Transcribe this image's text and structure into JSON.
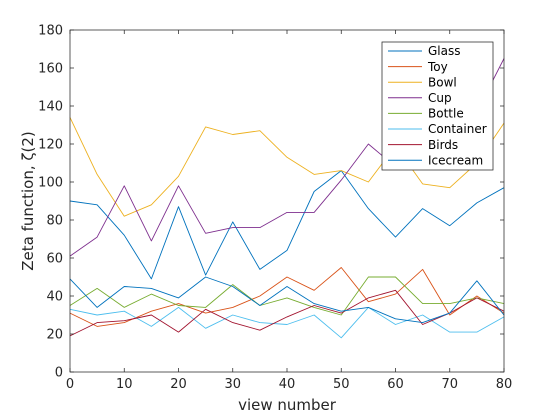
{
  "chart_data": {
    "type": "line",
    "title": "",
    "xlabel": "view number",
    "ylabel": "Zeta function, ζ(2)",
    "xlim": [
      0,
      80
    ],
    "ylim": [
      0,
      180
    ],
    "xticks": [
      0,
      10,
      20,
      30,
      40,
      50,
      60,
      70,
      80
    ],
    "yticks": [
      0,
      20,
      40,
      60,
      80,
      100,
      120,
      140,
      160,
      180
    ],
    "grid": false,
    "legend_position": "top-right",
    "x": [
      0,
      5,
      10,
      15,
      20,
      25,
      30,
      35,
      40,
      45,
      50,
      55,
      60,
      65,
      70,
      75,
      80
    ],
    "series": [
      {
        "name": "Glass",
        "color": "#0072BD",
        "values": [
          90,
          88,
          72,
          49,
          87,
          51,
          79,
          54,
          64,
          95,
          106,
          86,
          71,
          86,
          77,
          89,
          97
        ]
      },
      {
        "name": "Toy",
        "color": "#D95319",
        "values": [
          31,
          24,
          26,
          32,
          36,
          31,
          34,
          40,
          50,
          43,
          55,
          37,
          41,
          54,
          30,
          40,
          31
        ]
      },
      {
        "name": "Bowl",
        "color": "#EDB120",
        "values": [
          134,
          104,
          82,
          88,
          103,
          129,
          125,
          127,
          113,
          104,
          106,
          100,
          119,
          99,
          97,
          110,
          131
        ]
      },
      {
        "name": "Cup",
        "color": "#7E2F8E",
        "values": [
          61,
          71,
          98,
          69,
          98,
          73,
          76,
          76,
          84,
          84,
          101,
          120,
          108,
          126,
          124,
          137,
          165
        ]
      },
      {
        "name": "Bottle",
        "color": "#77AC30",
        "values": [
          35,
          44,
          34,
          41,
          35,
          34,
          46,
          35,
          39,
          34,
          30,
          50,
          50,
          36,
          36,
          39,
          36
        ]
      },
      {
        "name": "Container",
        "color": "#4DBEEE",
        "values": [
          33,
          30,
          32,
          24,
          34,
          23,
          30,
          26,
          25,
          30,
          18,
          34,
          25,
          30,
          21,
          21,
          29
        ]
      },
      {
        "name": "Birds",
        "color": "#A2142F",
        "values": [
          19,
          26,
          27,
          30,
          21,
          33,
          26,
          22,
          29,
          35,
          31,
          39,
          43,
          25,
          31,
          39,
          32
        ]
      },
      {
        "name": "Icecream",
        "color": "#0072BD",
        "values": [
          49,
          34,
          45,
          44,
          39,
          50,
          45,
          35,
          45,
          36,
          32,
          34,
          28,
          26,
          31,
          48,
          30
        ]
      }
    ]
  }
}
